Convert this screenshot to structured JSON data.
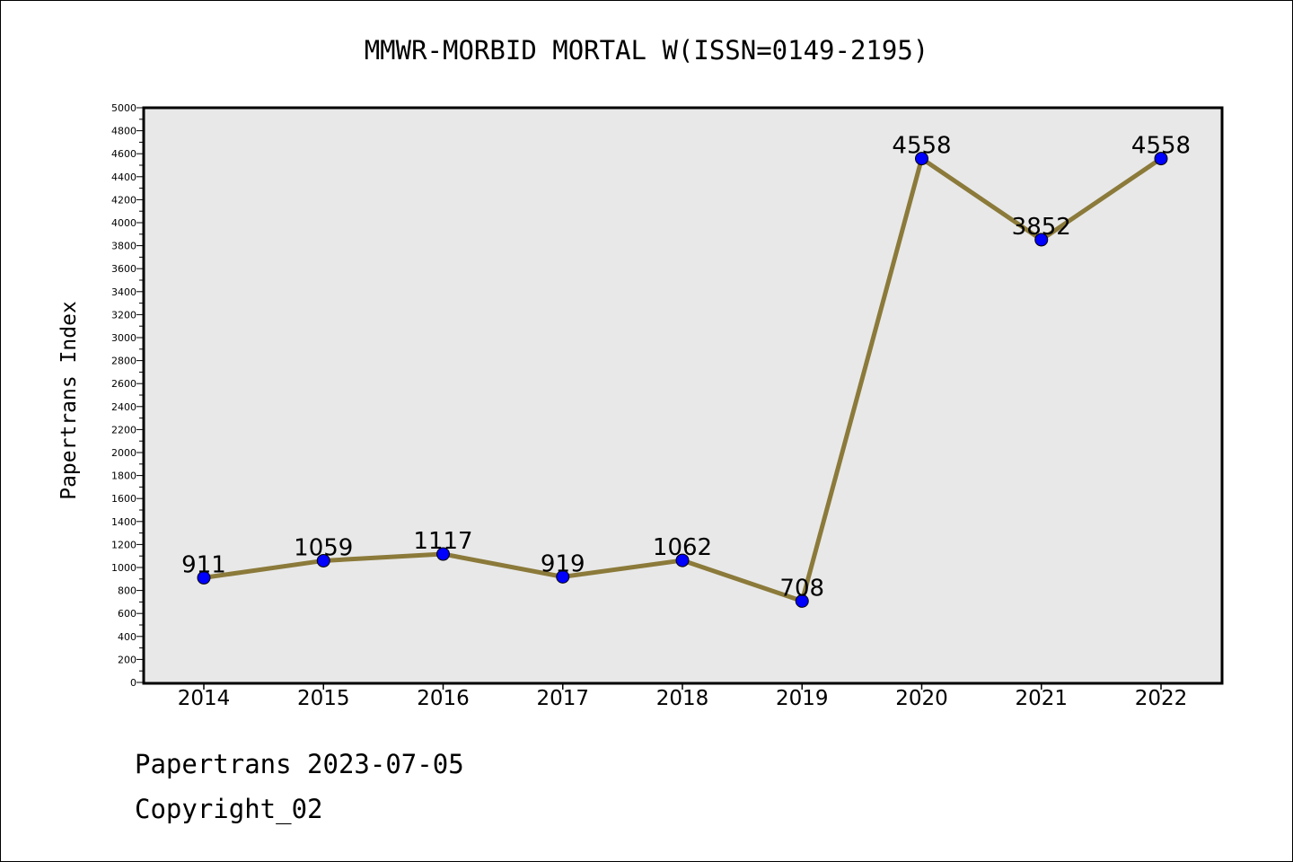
{
  "chart_data": {
    "type": "line",
    "title": "MMWR-MORBID MORTAL W(ISSN=0149-2195)",
    "xlabel": "",
    "ylabel": "Papertrans Index",
    "categories": [
      "2014",
      "2015",
      "2016",
      "2017",
      "2018",
      "2019",
      "2020",
      "2021",
      "2022"
    ],
    "values": [
      911,
      1059,
      1117,
      919,
      1062,
      708,
      4558,
      3852,
      4558
    ],
    "ylim": [
      0,
      5000
    ],
    "ytick_step": 200,
    "grid": false,
    "line_color": "#8b7a3a",
    "marker_color": "#0000ff",
    "plot_background": "#e8e8e8"
  },
  "footer": {
    "line1": "Papertrans 2023-07-05",
    "line2": "Copyright_02"
  }
}
